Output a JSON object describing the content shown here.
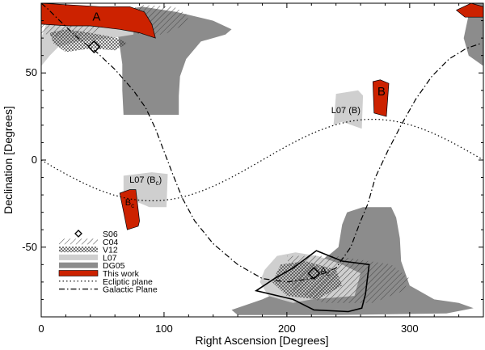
{
  "chart_data": {
    "type": "scatter",
    "title": "",
    "xlabel": "Right Ascension [Degrees]",
    "ylabel": "Declination [Degrees]",
    "xlim": [
      0,
      360
    ],
    "ylim": [
      -90,
      90
    ],
    "xticks": [
      0,
      100,
      200,
      300
    ],
    "yticks": [
      -50,
      0,
      50
    ],
    "grid": false,
    "legend_position": "bottom-left",
    "legend": [
      {
        "key": "s06",
        "label": "S06",
        "style": "diamond"
      },
      {
        "key": "c04",
        "label": "C04",
        "style": "diagonal-hatch"
      },
      {
        "key": "v12",
        "label": "V12",
        "style": "cross-hatch"
      },
      {
        "key": "l07",
        "label": "L07",
        "style": "light-gray"
      },
      {
        "key": "dg05",
        "label": "DG05",
        "style": "dark-gray"
      },
      {
        "key": "this",
        "label": "This work",
        "style": "red"
      },
      {
        "key": "ecl",
        "label": "Ecliptic plane",
        "style": "dotted"
      },
      {
        "key": "gal",
        "label": "Galactic Plane",
        "style": "dashdot"
      }
    ],
    "colors": {
      "this_work": "#cc2200",
      "l07": "#cfcfcf",
      "dg05": "#8c8c8c",
      "hatch": "#444444"
    },
    "region_labels": [
      {
        "text": "A",
        "ra": 45,
        "dec": 80
      },
      {
        "text": "B",
        "ra": 277,
        "dec": 37
      },
      {
        "text": "L07 (B)",
        "ra": 248,
        "dec": 27
      },
      {
        "text": "L07 (B",
        "sub": "c",
        "tail": ")",
        "ra": 85,
        "dec": -13
      },
      {
        "text": "B",
        "sub": "c",
        "tail": "",
        "ra": 72,
        "dec": -26
      },
      {
        "text": "A",
        "sub": "c",
        "tail": "",
        "ra": 231,
        "dec": -65
      }
    ],
    "s06_points": [
      {
        "ra": 43,
        "dec": 65
      },
      {
        "ra": 222,
        "dec": -65
      }
    ],
    "ecliptic_plane": {
      "formula": "dec = -23.4 * sin(RA)",
      "ra_range": [
        0,
        360
      ]
    },
    "galactic_plane": [
      [
        0,
        90
      ],
      [
        5,
        87
      ],
      [
        15,
        80
      ],
      [
        30,
        70
      ],
      [
        45,
        62
      ],
      [
        60,
        52
      ],
      [
        75,
        40
      ],
      [
        85,
        30
      ],
      [
        93,
        18
      ],
      [
        100,
        5
      ],
      [
        107,
        -8
      ],
      [
        115,
        -22
      ],
      [
        125,
        -35
      ],
      [
        140,
        -48
      ],
      [
        160,
        -60
      ],
      [
        180,
        -68
      ],
      [
        200,
        -70
      ],
      [
        220,
        -68
      ],
      [
        240,
        -62
      ],
      [
        252,
        -50
      ],
      [
        260,
        -35
      ],
      [
        266,
        -25
      ],
      [
        272,
        -10
      ],
      [
        282,
        5
      ],
      [
        293,
        20
      ],
      [
        305,
        35
      ],
      [
        318,
        48
      ],
      [
        332,
        58
      ],
      [
        346,
        64
      ],
      [
        358,
        67
      ]
    ],
    "regions": {
      "dg05": [
        [
          [
            58,
            85
          ],
          [
            82,
            88
          ],
          [
            110,
            85
          ],
          [
            140,
            80
          ],
          [
            155,
            75
          ],
          [
            150,
            72
          ],
          [
            130,
            68
          ],
          [
            118,
            58
          ],
          [
            113,
            48
          ],
          [
            112,
            37
          ],
          [
            112,
            26
          ],
          [
            67,
            26
          ],
          [
            66,
            40
          ],
          [
            66,
            55
          ],
          [
            63,
            70
          ],
          [
            55,
            80
          ]
        ],
        [
          [
            245,
            -37
          ],
          [
            242,
            -50
          ],
          [
            225,
            -60
          ],
          [
            205,
            -72
          ],
          [
            180,
            -80
          ],
          [
            155,
            -86
          ],
          [
            160,
            -89
          ],
          [
            240,
            -89
          ],
          [
            330,
            -88
          ],
          [
            352,
            -85
          ],
          [
            340,
            -82
          ],
          [
            320,
            -80
          ],
          [
            300,
            -72
          ],
          [
            293,
            -58
          ],
          [
            292,
            -45
          ],
          [
            289,
            -33
          ],
          [
            285,
            -27
          ],
          [
            262,
            -27
          ],
          [
            249,
            -30
          ]
        ],
        [
          [
            350,
            90
          ],
          [
            360,
            90
          ],
          [
            360,
            54
          ],
          [
            348,
            60
          ],
          [
            344,
            70
          ]
        ]
      ],
      "l07": [
        [
          [
            0,
            54
          ],
          [
            7,
            60
          ],
          [
            14,
            65
          ],
          [
            30,
            68
          ],
          [
            57,
            70
          ],
          [
            75,
            72
          ],
          [
            76,
            78
          ],
          [
            57,
            79
          ],
          [
            37,
            82
          ],
          [
            22,
            80
          ],
          [
            5,
            80
          ],
          [
            0,
            70
          ]
        ],
        [
          [
            240,
            38
          ],
          [
            258,
            40
          ],
          [
            262,
            37
          ],
          [
            261,
            18
          ],
          [
            245,
            22
          ],
          [
            238,
            20
          ]
        ],
        [
          [
            67,
            -9
          ],
          [
            90,
            -7
          ],
          [
            103,
            -8
          ],
          [
            102,
            -27
          ],
          [
            88,
            -27
          ],
          [
            78,
            -24
          ],
          [
            67,
            -22
          ]
        ],
        [
          [
            182,
            -63
          ],
          [
            192,
            -55
          ],
          [
            207,
            -53
          ],
          [
            225,
            -55
          ],
          [
            245,
            -60
          ],
          [
            260,
            -65
          ],
          [
            255,
            -78
          ],
          [
            220,
            -80
          ],
          [
            205,
            -82
          ],
          [
            185,
            -78
          ],
          [
            178,
            -70
          ]
        ]
      ],
      "this_work": [
        [
          [
            0,
            90
          ],
          [
            48,
            88
          ],
          [
            72,
            88
          ],
          [
            84,
            85
          ],
          [
            90,
            78
          ],
          [
            93,
            70
          ],
          [
            80,
            73
          ],
          [
            64,
            75
          ],
          [
            40,
            77
          ],
          [
            22,
            77
          ],
          [
            0,
            78
          ]
        ],
        [
          [
            270,
            45
          ],
          [
            276,
            46
          ],
          [
            283,
            44
          ],
          [
            281,
            25
          ],
          [
            271,
            27
          ]
        ],
        [
          [
            64,
            -19
          ],
          [
            72,
            -17
          ],
          [
            77,
            -17
          ],
          [
            80,
            -35
          ],
          [
            79,
            -38
          ],
          [
            70,
            -40
          ]
        ],
        [
          [
            360,
            88
          ],
          [
            350,
            90
          ],
          [
            338,
            86
          ],
          [
            345,
            82
          ],
          [
            360,
            82
          ]
        ]
      ],
      "c04": [
        [
          [
            70,
            86
          ],
          [
            83,
            89
          ],
          [
            108,
            88
          ],
          [
            120,
            83
          ],
          [
            118,
            78
          ],
          [
            100,
            72
          ],
          [
            80,
            72
          ],
          [
            65,
            77
          ]
        ],
        [
          [
            0,
            80
          ],
          [
            20,
            85
          ],
          [
            45,
            83
          ],
          [
            55,
            78
          ],
          [
            40,
            72
          ],
          [
            15,
            70
          ],
          [
            0,
            73
          ]
        ],
        [
          [
            200,
            -55
          ],
          [
            240,
            -55
          ],
          [
            285,
            -60
          ],
          [
            300,
            -68
          ],
          [
            295,
            -75
          ],
          [
            270,
            -82
          ],
          [
            230,
            -82
          ],
          [
            205,
            -75
          ]
        ]
      ],
      "v12": [
        [
          [
            7,
            73
          ],
          [
            20,
            75
          ],
          [
            40,
            73
          ],
          [
            62,
            70
          ],
          [
            70,
            67
          ],
          [
            60,
            63
          ],
          [
            40,
            64
          ],
          [
            20,
            62
          ],
          [
            10,
            67
          ]
        ],
        [
          [
            195,
            -60
          ],
          [
            215,
            -58
          ],
          [
            240,
            -63
          ],
          [
            245,
            -72
          ],
          [
            225,
            -80
          ],
          [
            200,
            -78
          ],
          [
            188,
            -70
          ]
        ]
      ],
      "this_work_outline": [
        [
          224,
          -52
        ],
        [
          245,
          -58
        ],
        [
          267,
          -60
        ],
        [
          264,
          -77
        ],
        [
          261,
          -85
        ],
        [
          250,
          -87
        ],
        [
          222,
          -86
        ],
        [
          205,
          -80
        ],
        [
          175,
          -75
        ],
        [
          190,
          -68
        ],
        [
          205,
          -62
        ]
      ]
    }
  }
}
